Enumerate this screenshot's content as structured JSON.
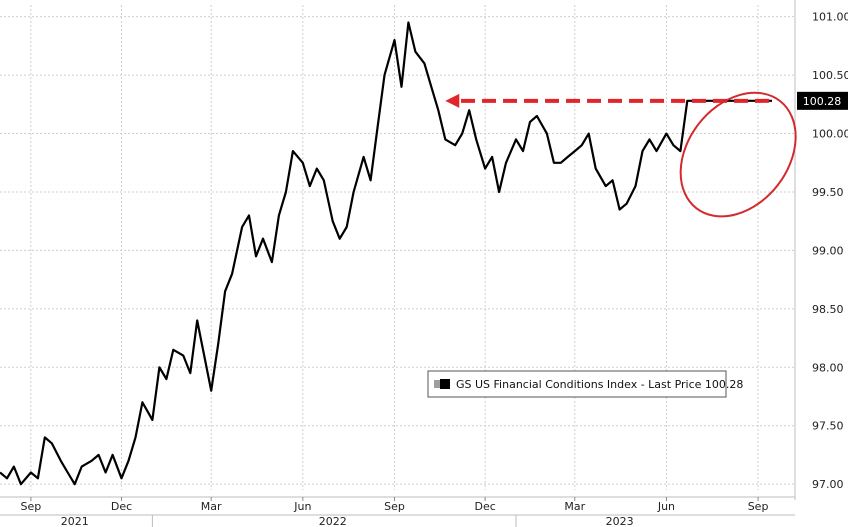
{
  "chart_data": {
    "type": "line",
    "legend": "GS US Financial Conditions Index - Last Price 100.28",
    "last_value": 100.28,
    "last_value_label": "100.28",
    "y_ticks": [
      "97.00",
      "97.50",
      "98.00",
      "98.50",
      "99.00",
      "99.50",
      "100.00",
      "100.50",
      "101.00"
    ],
    "ylim": [
      96.95,
      101.1
    ],
    "x_range": [
      "2021-08-01",
      "2023-09-20"
    ],
    "x_ticks": [
      {
        "label": "Sep",
        "date": "2021-09-01"
      },
      {
        "label": "Dec",
        "date": "2021-12-01"
      },
      {
        "label": "Mar",
        "date": "2022-03-01"
      },
      {
        "label": "Jun",
        "date": "2022-06-01"
      },
      {
        "label": "Sep",
        "date": "2022-09-01"
      },
      {
        "label": "Dec",
        "date": "2022-12-01"
      },
      {
        "label": "Mar",
        "date": "2023-03-01"
      },
      {
        "label": "Jun",
        "date": "2023-06-01"
      },
      {
        "label": "Sep",
        "date": "2023-09-01"
      }
    ],
    "years": [
      {
        "label": "2021",
        "date": "2021-10-15"
      },
      {
        "label": "2022",
        "date": "2022-07-01"
      },
      {
        "label": "2023",
        "date": "2023-04-15"
      }
    ],
    "year_separators": [
      "2022-01-01",
      "2023-01-01"
    ],
    "grid": true,
    "legend_position": "lower-right",
    "annotations": [
      {
        "type": "dashed-arrow",
        "from": {
          "x": "2023-09-12",
          "y": 100.28
        },
        "to": {
          "x": "2022-10-22",
          "y": 100.28
        },
        "color": "#e0262a"
      },
      {
        "type": "ellipse",
        "x_center": "2023-08-12",
        "y_center": 99.82,
        "color": "#d22a2f"
      }
    ],
    "colors": {
      "line": "#000000",
      "grid": "#cfcfcf",
      "annotation": "#e0262a",
      "last_price_box": "#000000"
    },
    "series": [
      {
        "name": "GS US Financial Conditions Index",
        "x": [
          "2021-08-01",
          "2021-08-08",
          "2021-08-15",
          "2021-08-22",
          "2021-09-01",
          "2021-09-08",
          "2021-09-15",
          "2021-09-22",
          "2021-10-01",
          "2021-10-08",
          "2021-10-15",
          "2021-10-22",
          "2021-11-01",
          "2021-11-08",
          "2021-11-15",
          "2021-11-22",
          "2021-12-01",
          "2021-12-08",
          "2021-12-15",
          "2021-12-22",
          "2022-01-01",
          "2022-01-08",
          "2022-01-15",
          "2022-01-22",
          "2022-02-01",
          "2022-02-08",
          "2022-02-15",
          "2022-02-22",
          "2022-03-01",
          "2022-03-08",
          "2022-03-15",
          "2022-03-22",
          "2022-04-01",
          "2022-04-08",
          "2022-04-15",
          "2022-04-22",
          "2022-05-01",
          "2022-05-08",
          "2022-05-15",
          "2022-05-22",
          "2022-06-01",
          "2022-06-08",
          "2022-06-15",
          "2022-06-22",
          "2022-07-01",
          "2022-07-08",
          "2022-07-15",
          "2022-07-22",
          "2022-08-01",
          "2022-08-08",
          "2022-08-15",
          "2022-08-22",
          "2022-09-01",
          "2022-09-08",
          "2022-09-15",
          "2022-09-22",
          "2022-10-01",
          "2022-10-08",
          "2022-10-15",
          "2022-10-22",
          "2022-11-01",
          "2022-11-08",
          "2022-11-15",
          "2022-11-22",
          "2022-12-01",
          "2022-12-08",
          "2022-12-15",
          "2022-12-22",
          "2023-01-01",
          "2023-01-08",
          "2023-01-15",
          "2023-01-22",
          "2023-02-01",
          "2023-02-08",
          "2023-02-15",
          "2023-02-22",
          "2023-03-01",
          "2023-03-08",
          "2023-03-15",
          "2023-03-22",
          "2023-04-01",
          "2023-04-08",
          "2023-04-15",
          "2023-04-22",
          "2023-05-01",
          "2023-05-08",
          "2023-05-15",
          "2023-05-22",
          "2023-06-01",
          "2023-06-08",
          "2023-06-15",
          "2023-06-22",
          "2023-07-01",
          "2023-07-08",
          "2023-07-15",
          "2023-07-22",
          "2023-08-01",
          "2023-08-08",
          "2023-08-15",
          "2023-08-22",
          "2023-09-01",
          "2023-09-08",
          "2023-09-15"
        ],
        "values": [
          97.1,
          97.05,
          97.15,
          97.0,
          97.1,
          97.05,
          97.4,
          97.35,
          97.2,
          97.1,
          97.0,
          97.15,
          97.2,
          97.25,
          97.1,
          97.25,
          97.05,
          97.2,
          97.4,
          97.7,
          97.55,
          98.0,
          97.9,
          98.15,
          98.1,
          97.95,
          98.4,
          98.1,
          97.8,
          98.2,
          98.65,
          98.8,
          99.2,
          99.3,
          98.95,
          99.1,
          98.9,
          99.3,
          99.5,
          99.85,
          99.75,
          99.55,
          99.7,
          99.6,
          99.25,
          99.1,
          99.2,
          99.5,
          99.8,
          99.6,
          100.05,
          100.5,
          100.8,
          100.4,
          100.95,
          100.7,
          100.6,
          100.4,
          100.2,
          99.95,
          99.9,
          100.0,
          100.2,
          99.95,
          99.7,
          99.8,
          99.5,
          99.75,
          99.95,
          99.85,
          100.1,
          100.15,
          100.0,
          99.75,
          99.75,
          99.8,
          99.85,
          99.9,
          100.0,
          99.7,
          99.55,
          99.6,
          99.35,
          99.4,
          99.55,
          99.85,
          99.95,
          99.85,
          100.0,
          99.9,
          99.85,
          100.28,
          100.28,
          100.28,
          100.28,
          100.28,
          100.28,
          100.28,
          100.28,
          100.28,
          100.28,
          100.28,
          100.28
        ]
      }
    ]
  }
}
